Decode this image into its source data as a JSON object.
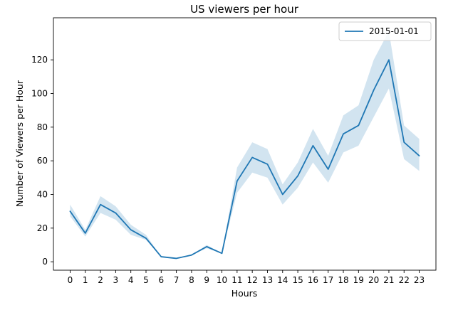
{
  "chart_data": {
    "type": "line",
    "title": "US viewers per hour",
    "xlabel": "Hours",
    "ylabel": "Number of Viewers per Hour",
    "x": [
      0,
      1,
      2,
      3,
      4,
      5,
      6,
      7,
      8,
      9,
      10,
      11,
      12,
      13,
      14,
      15,
      16,
      17,
      18,
      19,
      20,
      21,
      22,
      23
    ],
    "x_tick_labels": [
      "0",
      "1",
      "2",
      "3",
      "4",
      "5",
      "6",
      "7",
      "8",
      "9",
      "10",
      "11",
      "12",
      "13",
      "14",
      "15",
      "16",
      "17",
      "18",
      "19",
      "20",
      "21",
      "22",
      "23"
    ],
    "y_ticks": [
      0,
      20,
      40,
      60,
      80,
      100,
      120
    ],
    "y_tick_labels": [
      "0",
      "20",
      "40",
      "60",
      "80",
      "100",
      "120"
    ],
    "xlim": [
      -1.1,
      24.1
    ],
    "ylim": [
      -5,
      145
    ],
    "grid": false,
    "legend_position": "top-right",
    "series": [
      {
        "name": "2015-01-01",
        "color": "#1f77b4",
        "band_color": "#1f77b4",
        "values": [
          30,
          17,
          34,
          29,
          19,
          14,
          3,
          2,
          4,
          9,
          5,
          48,
          62,
          58,
          40,
          51,
          69,
          55,
          76,
          81,
          102,
          120,
          71,
          63
        ],
        "lower": [
          27,
          15,
          29,
          25,
          16,
          13,
          3,
          2,
          4,
          8,
          5,
          41,
          53,
          50,
          34,
          44,
          59,
          47,
          65,
          69,
          86,
          103,
          61,
          54
        ],
        "upper": [
          34,
          19,
          39,
          33,
          22,
          16,
          3,
          2,
          4,
          10,
          5,
          56,
          71,
          67,
          46,
          59,
          79,
          63,
          87,
          93,
          120,
          137,
          81,
          73
        ]
      }
    ]
  }
}
